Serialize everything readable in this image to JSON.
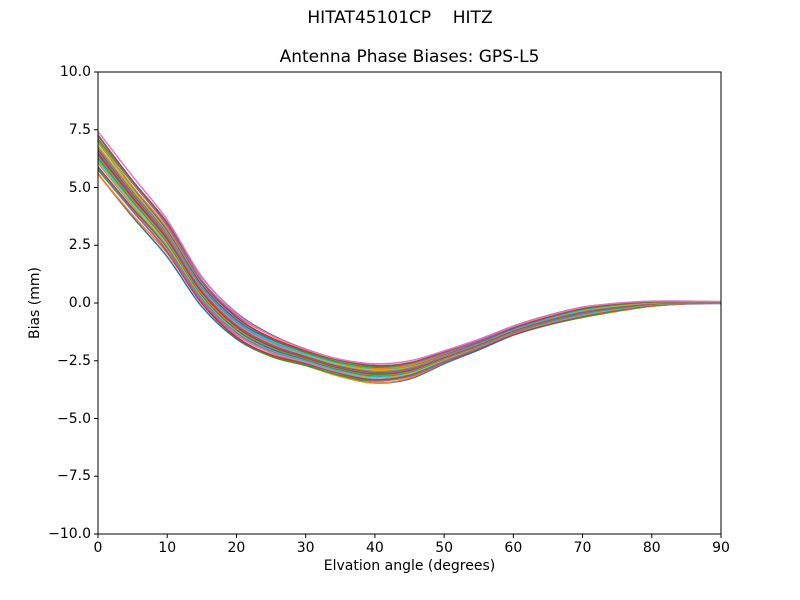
{
  "figure": {
    "suptitle": "HITAT45101CP    HITZ",
    "background_color": "#ffffff",
    "text_color": "#000000"
  },
  "chart_data": {
    "type": "line",
    "suptitle": "HITAT45101CP    HITZ",
    "title": "Antenna Phase Biases: GPS-L5",
    "xlabel": "Elvation angle (degrees)",
    "ylabel": "Bias (mm)",
    "xlim": [
      0,
      90
    ],
    "ylim": [
      -10.0,
      10.0
    ],
    "grid": false,
    "legend": null,
    "xticks": {
      "values": [
        0,
        10,
        20,
        30,
        40,
        50,
        60,
        70,
        80,
        90
      ],
      "labels": [
        "0",
        "10",
        "20",
        "30",
        "40",
        "50",
        "60",
        "70",
        "80",
        "90"
      ]
    },
    "yticks": {
      "values": [
        10.0,
        7.5,
        5.0,
        2.5,
        0.0,
        -2.5,
        -5.0,
        -7.5,
        -10.0
      ],
      "labels": [
        "10.0",
        "7.5",
        "5.0",
        "2.5",
        "0.0",
        "−2.5",
        "−5.0",
        "−7.5",
        "−10.0"
      ]
    },
    "x": [
      0,
      5,
      10,
      15,
      20,
      25,
      30,
      35,
      40,
      45,
      50,
      55,
      60,
      65,
      70,
      75,
      80,
      85,
      90
    ],
    "envelope": {
      "mean": [
        6.5,
        4.6,
        2.8,
        0.5,
        -1.0,
        -1.85,
        -2.35,
        -2.8,
        -3.05,
        -2.9,
        -2.35,
        -1.8,
        -1.2,
        -0.75,
        -0.4,
        -0.18,
        -0.03,
        0.02,
        0.02
      ],
      "half_spread": [
        1.0,
        0.9,
        0.8,
        0.68,
        0.62,
        0.55,
        0.42,
        0.42,
        0.45,
        0.4,
        0.28,
        0.24,
        0.22,
        0.24,
        0.26,
        0.2,
        0.12,
        0.06,
        0.04
      ],
      "upper": [
        7.5,
        5.5,
        3.6,
        1.18,
        -0.38,
        -1.3,
        -1.93,
        -2.38,
        -2.6,
        -2.5,
        -2.07,
        -1.56,
        -0.98,
        -0.51,
        -0.14,
        0.02,
        0.09,
        0.08,
        0.06
      ],
      "lower": [
        5.5,
        3.7,
        2.0,
        -0.18,
        -1.62,
        -2.4,
        -2.77,
        -3.22,
        -3.5,
        -3.3,
        -2.63,
        -2.04,
        -1.42,
        -0.99,
        -0.66,
        -0.38,
        -0.15,
        -0.04,
        -0.02
      ]
    },
    "n_lines": 27,
    "line_width": 1.5,
    "color_cycle": [
      "#1f77b4",
      "#ff7f0e",
      "#2ca02c",
      "#d62728",
      "#9467bd",
      "#8c564b",
      "#e377c2",
      "#7f7f7f",
      "#bcbd22",
      "#17becf"
    ],
    "axes_color": "#000000"
  }
}
